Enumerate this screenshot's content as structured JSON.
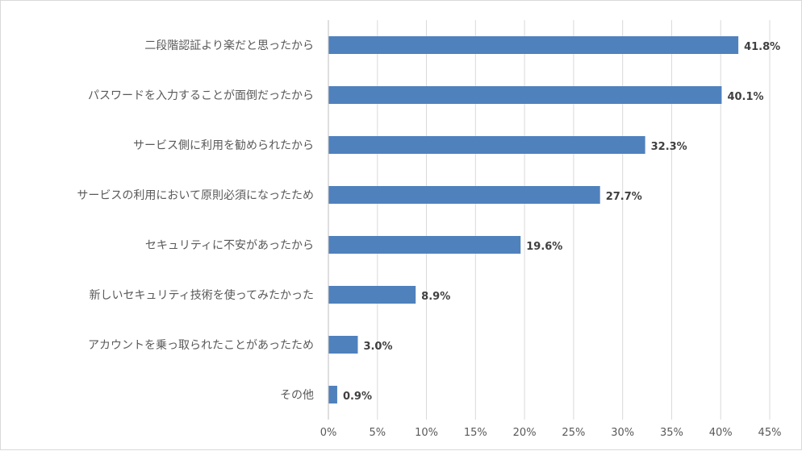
{
  "chart_data": {
    "type": "bar",
    "orientation": "horizontal",
    "categories": [
      "二段階認証より楽だと思ったから",
      "パスワードを入力することが面倒だったから",
      "サービス側に利用を勧められたから",
      "サービスの利用において原則必須になったため",
      "セキュリティに不安があったから",
      "新しいセキュリティ技術を使ってみたかった",
      "アカウントを乗っ取られたことがあったため",
      "その他"
    ],
    "values": [
      41.8,
      40.1,
      32.3,
      27.7,
      19.6,
      8.9,
      3.0,
      0.9
    ],
    "data_labels": [
      "41.8%",
      "40.1%",
      "32.3%",
      "27.7%",
      "19.6%",
      "8.9%",
      "3.0%",
      "0.9%"
    ],
    "x_ticks": [
      "0%",
      "5%",
      "10%",
      "15%",
      "20%",
      "25%",
      "30%",
      "35%",
      "40%",
      "45%"
    ],
    "xlim": [
      0,
      45
    ],
    "grid": "vertical",
    "bar_color": "#4f81bd",
    "title": "",
    "xlabel": "",
    "ylabel": ""
  }
}
